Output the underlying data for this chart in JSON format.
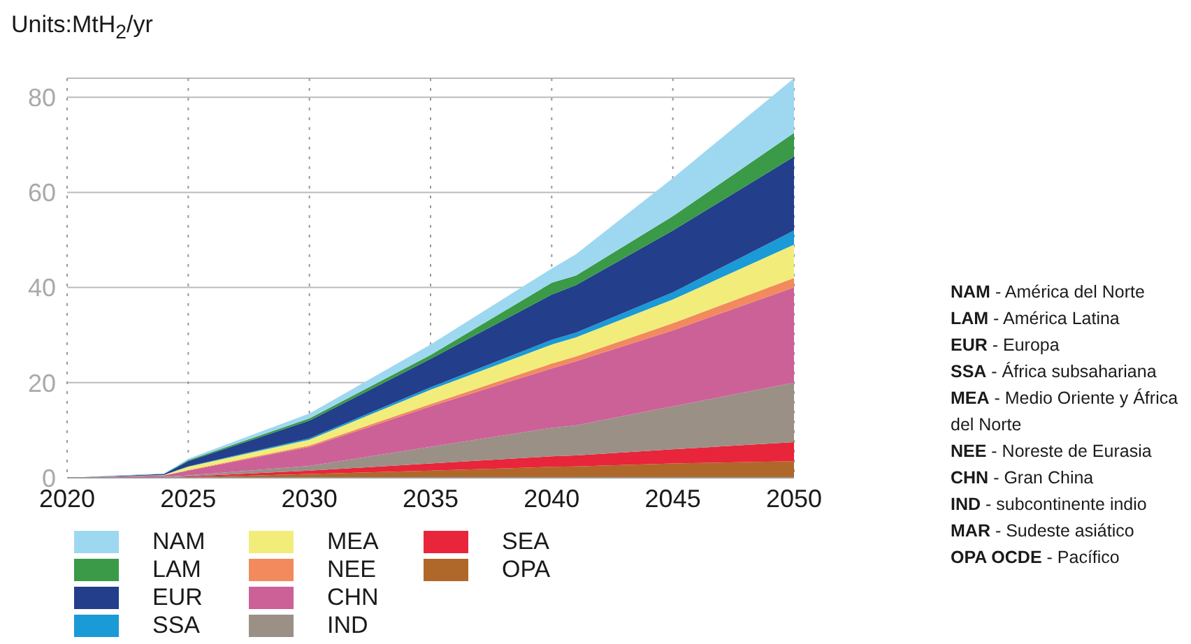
{
  "chart_data": {
    "type": "area",
    "stacked": true,
    "title": "Units:MtH$_{2}$/yr",
    "x": [
      2020,
      2024,
      2025,
      2030,
      2035,
      2040,
      2041,
      2045,
      2050
    ],
    "xlim": [
      2020,
      2050
    ],
    "xticks": [
      2020,
      2025,
      2030,
      2035,
      2040,
      2045,
      2050
    ],
    "ylim": [
      0,
      84
    ],
    "yticks": [
      0,
      20,
      40,
      60,
      80
    ],
    "grid": true,
    "legend": "bottom",
    "series": [
      {
        "name": "OPA",
        "color": "#b0682a",
        "values": [
          0,
          0.1,
          0.1,
          0.8,
          1.5,
          2.3,
          2.4,
          3,
          3.5
        ]
      },
      {
        "name": "SEA",
        "color": "#e8253a",
        "values": [
          0,
          0,
          0.2,
          0.7,
          1.5,
          2.2,
          2.3,
          3,
          4
        ]
      },
      {
        "name": "IND",
        "color": "#9a9086",
        "values": [
          0,
          0.1,
          0.2,
          1,
          3.5,
          6,
          6.3,
          9,
          12.5
        ]
      },
      {
        "name": "CHN",
        "color": "#cc6198",
        "values": [
          0,
          0.3,
          1,
          4,
          8.5,
          12.5,
          13.5,
          16,
          20
        ]
      },
      {
        "name": "NEE",
        "color": "#f28a5e",
        "values": [
          0,
          0,
          0.1,
          0.3,
          0.5,
          1,
          1,
          1.5,
          2
        ]
      },
      {
        "name": "MEA",
        "color": "#f2ed7a",
        "values": [
          0,
          0.1,
          0.7,
          1.2,
          3,
          4,
          4,
          5,
          7
        ]
      },
      {
        "name": "SSA",
        "color": "#1a9ad6",
        "values": [
          0,
          0,
          0.1,
          0.3,
          0.5,
          1,
          1,
          1.5,
          3
        ]
      },
      {
        "name": "EUR",
        "color": "#233e8b",
        "values": [
          0,
          0.2,
          1.1,
          3.7,
          6,
          9.5,
          10,
          13,
          15.5
        ]
      },
      {
        "name": "LAM",
        "color": "#3a9a47",
        "values": [
          0,
          0,
          0.2,
          0.5,
          0.8,
          2.5,
          2,
          3,
          5
        ]
      },
      {
        "name": "NAM",
        "color": "#9ed8f0",
        "values": [
          0,
          0.1,
          0.3,
          1,
          2.2,
          3,
          4.5,
          8,
          11.5
        ]
      }
    ],
    "annotations": [
      "NAM - América del Norte",
      "LAM - América Latina",
      "EUR - Europa",
      "SSA - África subsahariana",
      "MEA - Medio Oriente y África del Norte",
      "NEE - Noreste de Eurasia",
      "CHN - Gran China",
      "IND - subcontinente indio",
      "MAR - Sudeste asiático",
      "OPA OCDE - Pacífico"
    ]
  }
}
